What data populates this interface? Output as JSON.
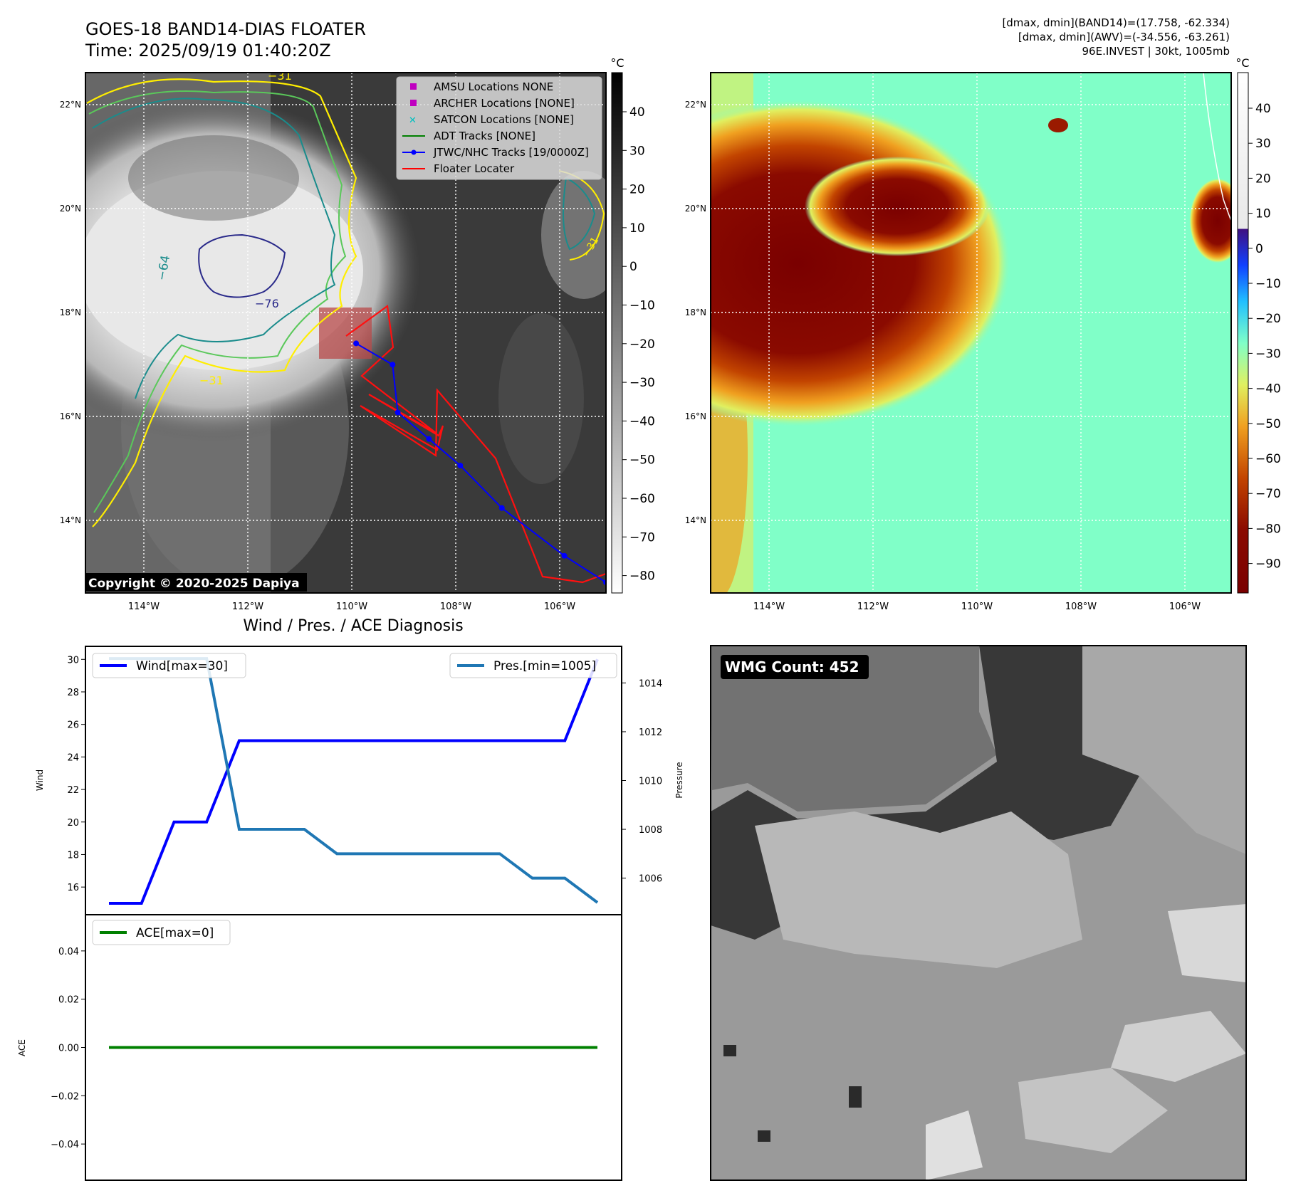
{
  "header": {
    "title": "GOES-18 BAND14-DIAS FLOATER",
    "time": "Time: 2025/09/19 01:40:20Z",
    "dmax_band14": "[dmax, dmin](BAND14)=(17.758, -62.334)",
    "dmax_awv": "[dmax, dmin](AWV)=(-34.556, -63.261)",
    "storm": "96E.INVEST | 30kt, 1005mb"
  },
  "map_common": {
    "lat_labels": [
      "22°N",
      "20°N",
      "18°N",
      "16°N",
      "14°N"
    ],
    "lon_labels": [
      "114°W",
      "112°W",
      "110°W",
      "108°W",
      "106°W"
    ],
    "lon_range": [
      -115.1,
      -105.1
    ],
    "lat_range": [
      12.8,
      22.6
    ]
  },
  "panel_ir": {
    "colorbar_unit": "°C",
    "colorbar_ticks": [
      "40",
      "30",
      "20",
      "10",
      "0",
      "−10",
      "−20",
      "−30",
      "−40",
      "−50",
      "−60",
      "−70",
      "−80"
    ],
    "contour_labels": [
      "−31",
      "−64",
      "−76",
      "−31",
      "−31"
    ],
    "copyright": "Copyright © 2020-2025 Dapiya",
    "legend": [
      {
        "label": "AMSU Locations NONE",
        "color": "#c000c0",
        "marker": "square"
      },
      {
        "label": "ARCHER Locations [NONE]",
        "color": "#c000c0",
        "marker": "square"
      },
      {
        "label": "SATCON Locations [NONE]",
        "color": "#00c0c0",
        "marker": "x"
      },
      {
        "label": "ADT Tracks [NONE]",
        "color": "#008000",
        "marker": "line"
      },
      {
        "label": "JTWC/NHC Tracks [19/0000Z]",
        "color": "#0000ff",
        "marker": "line-dot"
      },
      {
        "label": "Floater Locater",
        "color": "#ff0000",
        "marker": "line"
      }
    ],
    "track_points": [
      [
        -109.9,
        17.5
      ],
      [
        -109.2,
        17.1
      ],
      [
        -109.1,
        16.2
      ],
      [
        -108.5,
        15.7
      ],
      [
        -107.9,
        15.2
      ],
      [
        -107.1,
        14.4
      ],
      [
        -105.9,
        13.5
      ],
      [
        -105.1,
        13.0
      ]
    ]
  },
  "panel_awv": {
    "colorbar_unit": "°C",
    "colorbar_ticks": [
      "40",
      "30",
      "20",
      "10",
      "0",
      "−10",
      "−20",
      "−30",
      "−40",
      "−50",
      "−60",
      "−70",
      "−80",
      "−90"
    ]
  },
  "panel_wmg": {
    "count_label": "WMG Count: 452"
  },
  "diagnosis": {
    "title": "Wind / Pres. / ACE Diagnosis"
  },
  "chart_data": [
    {
      "type": "line",
      "title": "Wind / Pres. / ACE Diagnosis",
      "ylabel": "Wind",
      "ylabel_right": "Pressure",
      "ylim": [
        14.3,
        30.8
      ],
      "ylim_right": [
        1004.5,
        1015.5
      ],
      "yticks": [
        16,
        18,
        20,
        22,
        24,
        26,
        28,
        30
      ],
      "yticks_right": [
        1006,
        1008,
        1010,
        1012,
        1014
      ],
      "x": [
        0,
        1,
        2,
        3,
        4,
        5,
        6,
        7,
        8,
        9,
        10,
        11,
        12,
        13,
        14,
        15
      ],
      "series": [
        {
          "name": "Wind[max=30]",
          "color": "#0000ff",
          "axis": "left",
          "values": [
            15,
            15,
            20,
            20,
            25,
            25,
            25,
            25,
            25,
            25,
            25,
            25,
            25,
            25,
            25,
            30
          ]
        },
        {
          "name": "Pres.[min=1005]",
          "color": "#1f77b4",
          "axis": "right",
          "values": [
            1015,
            1015,
            1015,
            1015,
            1008,
            1008,
            1008,
            1007,
            1007,
            1007,
            1007,
            1007,
            1007,
            1006,
            1006,
            1005
          ]
        }
      ],
      "legend": [
        "top-left",
        "top-right"
      ]
    },
    {
      "type": "line",
      "ylabel": "ACE",
      "ylim": [
        -0.055,
        0.055
      ],
      "yticks": [
        -0.04,
        -0.02,
        0.0,
        0.02,
        0.04
      ],
      "ytick_labels": [
        "−0.04",
        "−0.02",
        "0.00",
        "0.02",
        "0.04"
      ],
      "x": [
        0,
        1,
        2,
        3,
        4,
        5,
        6,
        7,
        8,
        9,
        10,
        11,
        12,
        13,
        14,
        15
      ],
      "series": [
        {
          "name": "ACE[max=0]",
          "color": "#008000",
          "values": [
            0,
            0,
            0,
            0,
            0,
            0,
            0,
            0,
            0,
            0,
            0,
            0,
            0,
            0,
            0,
            0
          ]
        }
      ],
      "legend": "top-left"
    }
  ]
}
